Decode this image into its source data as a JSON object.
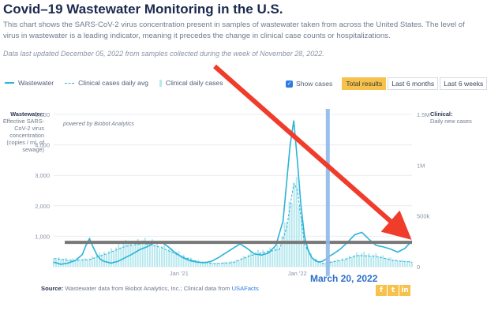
{
  "header": {
    "title": "Covid–19 Wastewater Monitoring in the U.S.",
    "description": "This chart shows the SARS-CoV-2 virus concentration present in samples of wastewater taken from across the United States. The level of virus in wastewater is a leading indicator, meaning it precedes the change in clinical case counts or hospitalizations.",
    "updated": "Data last updated December 05, 2022 from samples collected during the week of November 28, 2022."
  },
  "legend": {
    "wastewater": "Wastewater",
    "cases_avg": "Clinical cases daily avg",
    "cases_daily": "Clinical daily cases"
  },
  "controls": {
    "show_cases": "Show cases",
    "show_cases_checked": true,
    "ranges": [
      "Total results",
      "Last 6 months",
      "Last 6 weeks"
    ],
    "active_range": "Total results"
  },
  "axes": {
    "left_title": "Wastewater:",
    "left_sub": "Effective SARS-CoV-2 virus concentration (copies / mL of sewage)",
    "right_title": "Clinical:",
    "right_sub": "Daily new cases"
  },
  "chart_data": {
    "type": "line",
    "watermark": "powered by Biobot Analytics",
    "x_ticks": [
      "Jan '21",
      "Jan '22"
    ],
    "y_left": {
      "ticks": [
        0,
        1000,
        2000,
        3000,
        4000,
        5000
      ],
      "tick_labels": [
        "",
        "1,000",
        "2,000",
        "3,000",
        "4,000",
        "5,000"
      ],
      "range": [
        0,
        5000
      ]
    },
    "y_right": {
      "ticks": [
        0,
        500000,
        1000000,
        1500000
      ],
      "tick_labels": [
        "0",
        "500k",
        "1M",
        "1.5M"
      ],
      "range": [
        0,
        1500000
      ]
    },
    "grid": true,
    "series": [
      {
        "name": "Wastewater",
        "color": "#2bb3d8",
        "x": [
          0,
          0.02,
          0.04,
          0.06,
          0.08,
          0.09,
          0.1,
          0.11,
          0.12,
          0.13,
          0.14,
          0.16,
          0.18,
          0.2,
          0.22,
          0.24,
          0.26,
          0.28,
          0.3,
          0.32,
          0.34,
          0.36,
          0.38,
          0.4,
          0.42,
          0.44,
          0.46,
          0.48,
          0.5,
          0.52,
          0.54,
          0.56,
          0.58,
          0.6,
          0.62,
          0.64,
          0.66,
          0.67,
          0.68,
          0.69,
          0.7,
          0.71,
          0.72,
          0.73,
          0.74,
          0.75,
          0.76,
          0.77,
          0.78,
          0.8,
          0.82,
          0.84,
          0.86,
          0.88,
          0.9,
          0.92,
          0.94,
          0.96,
          0.98,
          1
        ],
        "y": [
          150,
          80,
          120,
          200,
          400,
          700,
          920,
          650,
          400,
          250,
          180,
          120,
          180,
          300,
          420,
          560,
          650,
          780,
          820,
          650,
          450,
          300,
          200,
          150,
          130,
          180,
          300,
          450,
          600,
          750,
          600,
          420,
          380,
          450,
          700,
          1500,
          4000,
          4800,
          3500,
          2000,
          1000,
          550,
          300,
          200,
          150,
          180,
          250,
          350,
          420,
          580,
          800,
          1050,
          1130,
          900,
          700,
          650,
          580,
          480,
          600,
          850
        ]
      },
      {
        "name": "Clinical cases daily avg",
        "color": "#2bb3d8",
        "x": [
          0,
          0.05,
          0.1,
          0.15,
          0.2,
          0.25,
          0.3,
          0.35,
          0.4,
          0.45,
          0.5,
          0.55,
          0.6,
          0.63,
          0.65,
          0.67,
          0.68,
          0.7,
          0.72,
          0.75,
          0.8,
          0.85,
          0.9,
          0.95,
          1
        ],
        "y": [
          80000,
          60000,
          70000,
          130000,
          200000,
          230000,
          190000,
          110000,
          50000,
          30000,
          40000,
          110000,
          150000,
          170000,
          380000,
          820000,
          760000,
          220000,
          90000,
          30000,
          60000,
          110000,
          100000,
          60000,
          45000
        ]
      },
      {
        "name": "Clinical daily cases",
        "color": "#b6e8ee",
        "x": [
          0,
          0.05,
          0.1,
          0.15,
          0.2,
          0.25,
          0.3,
          0.35,
          0.4,
          0.45,
          0.5,
          0.55,
          0.6,
          0.63,
          0.65,
          0.67,
          0.68,
          0.7,
          0.72,
          0.75,
          0.8,
          0.85,
          0.9,
          0.95,
          1
        ],
        "y": [
          90000,
          70000,
          80000,
          150000,
          230000,
          260000,
          210000,
          130000,
          60000,
          35000,
          50000,
          130000,
          170000,
          200000,
          450000,
          850000,
          800000,
          250000,
          100000,
          35000,
          70000,
          130000,
          120000,
          70000,
          50000
        ]
      }
    ],
    "overlays": {
      "horizontal_line_value": 800,
      "horizontal_line_color": "#777777",
      "vertical_line_x": 0.765,
      "vertical_line_color": "#8fb9ea",
      "arrow_color": "#f03c2b",
      "annotation": "March 20, 2022"
    }
  },
  "footer": {
    "source_label": "Source:",
    "source_text": " Wastewater data from Biobot Analytics, Inc.; Clinical data from ",
    "source_link": "USAFacts",
    "social": [
      "f",
      "t",
      "in"
    ]
  }
}
